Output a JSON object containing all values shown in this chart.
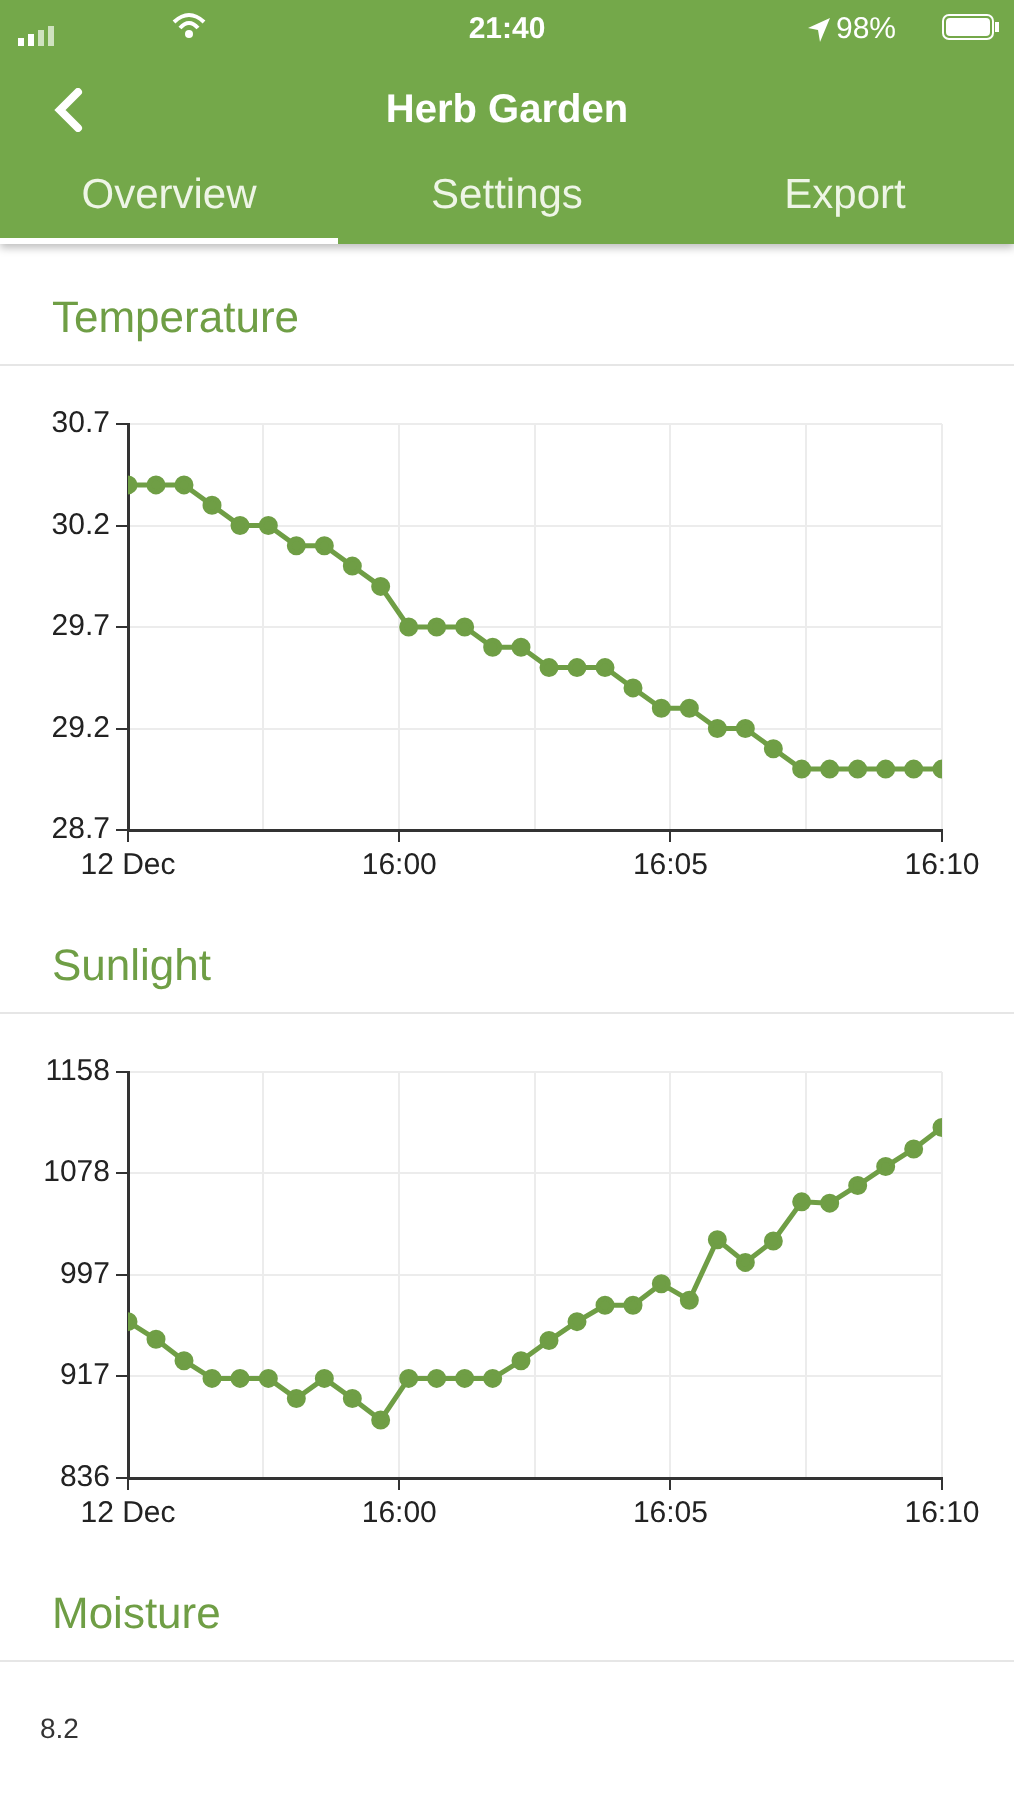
{
  "chart_data": [
    {
      "type": "other",
      "title": "Herb Garden",
      "annotations": [
        "21:40",
        "98%",
        "Overview",
        "Settings",
        "Export"
      ]
    },
    {
      "type": "line",
      "title": "Temperature",
      "x": [
        15.9167,
        15.9253,
        15.9339,
        15.9425,
        15.9511,
        15.9598,
        15.9684,
        15.977,
        15.9856,
        15.9943,
        16.0029,
        16.0115,
        16.0201,
        16.0287,
        16.0374,
        16.046,
        16.0546,
        16.0632,
        16.0718,
        16.0805,
        16.0891,
        16.0977,
        16.1063,
        16.1149,
        16.1236,
        16.1322,
        16.1408,
        16.1494,
        16.158,
        16.1667
      ],
      "series": [
        {
          "color": "#6f9e45",
          "values": [
            30.4,
            30.4,
            30.4,
            30.3,
            30.2,
            30.2,
            30.1,
            30.1,
            30.0,
            29.9,
            29.7,
            29.7,
            29.7,
            29.6,
            29.6,
            29.5,
            29.5,
            29.5,
            29.4,
            29.3,
            29.3,
            29.2,
            29.2,
            29.1,
            29.0,
            29.0,
            29.0,
            29.0,
            29.0,
            29.0
          ]
        }
      ],
      "xlim": [
        15.9167,
        16.1667
      ],
      "xticks": [
        {
          "value": 15.9167,
          "label": "12 Dec"
        },
        {
          "value": 15.9583,
          "label": null
        },
        {
          "value": 16,
          "label": "16:00"
        },
        {
          "value": 16.0417,
          "label": null
        },
        {
          "value": 16.0833,
          "label": "16:05"
        },
        {
          "value": 16.125,
          "label": null
        },
        {
          "value": 16.1667,
          "label": "16:10"
        }
      ],
      "ylim": [
        28.7,
        30.7
      ],
      "yticks": [
        28.7,
        29.2,
        29.7,
        30.2,
        30.7
      ],
      "grid": true,
      "legend": false,
      "marker": "circle",
      "line_style": "solid"
    },
    {
      "type": "line",
      "title": "Sunlight",
      "x": [
        15.9167,
        15.9253,
        15.9339,
        15.9425,
        15.9511,
        15.9598,
        15.9684,
        15.977,
        15.9856,
        15.9943,
        16.0029,
        16.0115,
        16.0201,
        16.0287,
        16.0374,
        16.046,
        16.0546,
        16.0632,
        16.0718,
        16.0805,
        16.0891,
        16.0977,
        16.1063,
        16.1149,
        16.1236,
        16.1322,
        16.1408,
        16.1494,
        16.158,
        16.1667
      ],
      "series": [
        {
          "color": "#6f9e45",
          "values": [
            960,
            946,
            929,
            915,
            915,
            915,
            899,
            915,
            899,
            882,
            915,
            915,
            915,
            915,
            929,
            945,
            960,
            973,
            973,
            990,
            977,
            1025,
            1007,
            1024,
            1055,
            1054,
            1068,
            1083,
            1097,
            1114
          ]
        }
      ],
      "xlim": [
        15.9167,
        16.1667
      ],
      "xticks": [
        {
          "value": 15.9167,
          "label": "12 Dec"
        },
        {
          "value": 15.9583,
          "label": null
        },
        {
          "value": 16,
          "label": "16:00"
        },
        {
          "value": 16.0417,
          "label": null
        },
        {
          "value": 16.0833,
          "label": "16:05"
        },
        {
          "value": 16.125,
          "label": null
        },
        {
          "value": 16.1667,
          "label": "16:10"
        }
      ],
      "ylim": [
        836,
        1158
      ],
      "yticks": [
        836,
        917,
        997,
        1078,
        1158
      ],
      "grid": true,
      "legend": false,
      "marker": "circle",
      "line_style": "solid"
    },
    {
      "type": "other",
      "title": "Moisture",
      "annotations": [
        "8.2"
      ]
    }
  ]
}
